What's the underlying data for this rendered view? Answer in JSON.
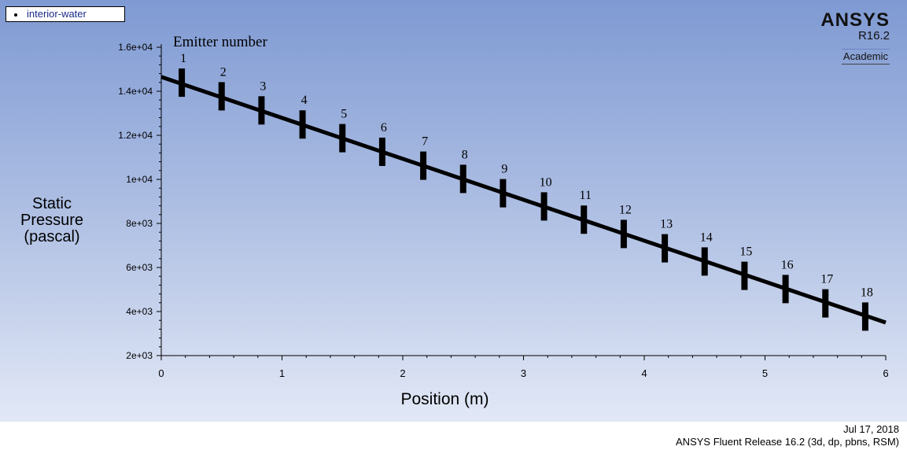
{
  "legend": {
    "label": "interior-water"
  },
  "brand": {
    "name": "ANSYS",
    "version": "R16.2",
    "edition": "Academic"
  },
  "footer": {
    "date": "Jul 17, 2018",
    "release": "ANSYS Fluent Release 16.2 (3d, dp, pbns, RSM)"
  },
  "chart_data": {
    "type": "line",
    "xlabel": "Position (m)",
    "ylabel": [
      "Static",
      "Pressure",
      "(pascal)"
    ],
    "annotation_title": "Emitter number",
    "xlim": [
      0,
      6
    ],
    "ylim": [
      2000,
      16000
    ],
    "x_ticks": [
      0,
      1,
      2,
      3,
      4,
      5,
      6
    ],
    "x_tick_labels": [
      "0",
      "1",
      "2",
      "3",
      "4",
      "5",
      "6"
    ],
    "y_ticks": [
      2000,
      4000,
      6000,
      8000,
      10000,
      12000,
      14000,
      16000
    ],
    "y_tick_labels": [
      "2e+03",
      "4e+03",
      "6e+03",
      "8e+03",
      "1e+04",
      "1.2e+04",
      "1.4e+04",
      "1.6e+04"
    ],
    "grid": false,
    "series": [
      {
        "values": [
          [
            0,
            14650
          ],
          [
            6,
            3500
          ]
        ]
      }
    ],
    "emitters": [
      {
        "label": "1",
        "x": 0.17,
        "y": 14320
      },
      {
        "label": "2",
        "x": 0.5,
        "y": 13700
      },
      {
        "label": "3",
        "x": 0.83,
        "y": 13060
      },
      {
        "label": "4",
        "x": 1.17,
        "y": 12420
      },
      {
        "label": "5",
        "x": 1.5,
        "y": 11800
      },
      {
        "label": "6",
        "x": 1.83,
        "y": 11180
      },
      {
        "label": "7",
        "x": 2.17,
        "y": 10550
      },
      {
        "label": "8",
        "x": 2.5,
        "y": 9950
      },
      {
        "label": "9",
        "x": 2.83,
        "y": 9300
      },
      {
        "label": "10",
        "x": 3.17,
        "y": 8700
      },
      {
        "label": "11",
        "x": 3.5,
        "y": 8100
      },
      {
        "label": "12",
        "x": 3.83,
        "y": 7450
      },
      {
        "label": "13",
        "x": 4.17,
        "y": 6800
      },
      {
        "label": "14",
        "x": 4.5,
        "y": 6200
      },
      {
        "label": "15",
        "x": 4.83,
        "y": 5550
      },
      {
        "label": "16",
        "x": 5.17,
        "y": 4950
      },
      {
        "label": "17",
        "x": 5.5,
        "y": 4300
      },
      {
        "label": "18",
        "x": 5.83,
        "y": 3700
      }
    ]
  }
}
